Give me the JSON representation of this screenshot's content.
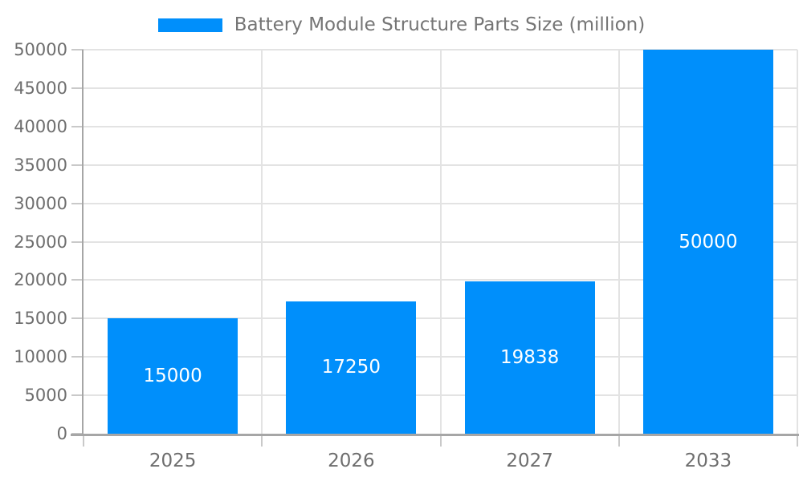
{
  "chart_data": {
    "type": "bar",
    "title": "Battery Module Structure Parts Size (million)",
    "categories": [
      "2025",
      "2026",
      "2027",
      "2033"
    ],
    "values": [
      15000,
      17250,
      19838,
      50000
    ],
    "value_labels": [
      "15000",
      "17250",
      "19838",
      "50000"
    ],
    "xlabel": "",
    "ylabel": "",
    "ylim": [
      0,
      50000
    ],
    "ytick_step": 5000,
    "ytick_labels": [
      "0",
      "5000",
      "10000",
      "15000",
      "20000",
      "25000",
      "30000",
      "35000",
      "40000",
      "45000",
      "50000"
    ],
    "grid": "on",
    "legend_position": "top",
    "colors": {
      "bar": "#008FFB",
      "grid": "#e3e3e3",
      "spine": "#a6a6a6",
      "tick": "#c9c9c9",
      "axis_text": "#6e6e6e",
      "legend_text": "#757575",
      "value_text": "#ffffff",
      "background": "#ffffff"
    }
  }
}
